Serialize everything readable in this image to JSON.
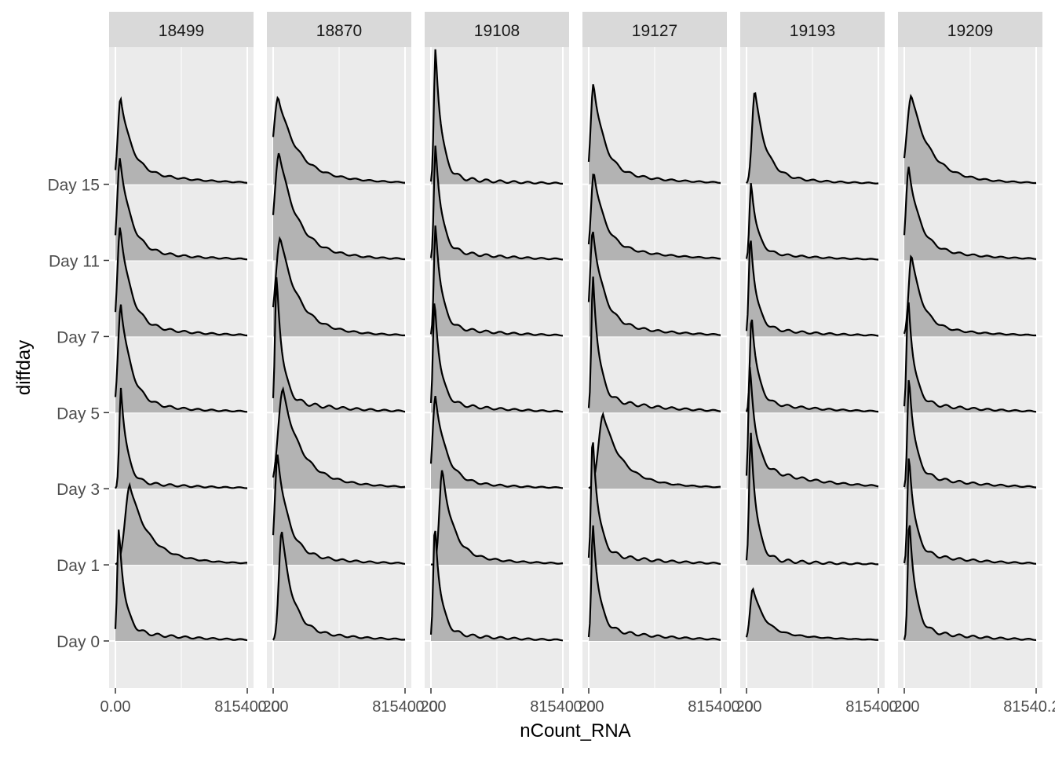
{
  "chart_data": {
    "type": "ridgeline",
    "xlabel": "nCount_RNA",
    "ylabel": "diffday",
    "x_tick_labels": [
      "0.00",
      "81540.20"
    ],
    "x_range": [
      0,
      81540.2
    ],
    "categories": [
      "Day 0",
      "Day 1",
      "Day 3",
      "Day 5",
      "Day 7",
      "Day 11",
      "Day 15"
    ],
    "fill_color": "#b3b3b3",
    "line_color": "#000000",
    "panel_background": "#ebebeb",
    "strip_background": "#d9d9d9",
    "grid": true,
    "facets": [
      {
        "label": "18499",
        "ridges": [
          {
            "day": "Day 0",
            "peak_x": 2200,
            "peak_height": 1.48,
            "shape": "sharp",
            "tail": 0.1
          },
          {
            "day": "Day 1",
            "peak_x": 9000,
            "peak_height": 1.05,
            "shape": "broad",
            "tail": 0.15
          },
          {
            "day": "Day 3",
            "peak_x": 3500,
            "peak_height": 1.33,
            "shape": "sharp",
            "tail": 0.08
          },
          {
            "day": "Day 5",
            "peak_x": 3400,
            "peak_height": 1.42,
            "shape": "medium",
            "tail": 0.1
          },
          {
            "day": "Day 7",
            "peak_x": 3000,
            "peak_height": 1.45,
            "shape": "medium",
            "tail": 0.12
          },
          {
            "day": "Day 11",
            "peak_x": 2900,
            "peak_height": 1.35,
            "shape": "medium",
            "tail": 0.12
          },
          {
            "day": "Day 15",
            "peak_x": 3300,
            "peak_height": 1.15,
            "shape": "medium",
            "tail": 0.18
          }
        ]
      },
      {
        "label": "18870",
        "ridges": [
          {
            "day": "Day 0",
            "peak_x": 5300,
            "peak_height": 1.45,
            "shape": "medium",
            "tail": 0.12
          },
          {
            "day": "Day 1",
            "peak_x": 2800,
            "peak_height": 1.45,
            "shape": "medium",
            "tail": 0.12
          },
          {
            "day": "Day 3",
            "peak_x": 6000,
            "peak_height": 1.3,
            "shape": "broad",
            "tail": 0.15
          },
          {
            "day": "Day 5",
            "peak_x": 2200,
            "peak_height": 1.8,
            "shape": "sharp",
            "tail": 0.1
          },
          {
            "day": "Day 7",
            "peak_x": 4500,
            "peak_height": 1.3,
            "shape": "broad",
            "tail": 0.12
          },
          {
            "day": "Day 11",
            "peak_x": 3800,
            "peak_height": 1.42,
            "shape": "broad",
            "tail": 0.12
          },
          {
            "day": "Day 15",
            "peak_x": 3200,
            "peak_height": 1.15,
            "shape": "broad",
            "tail": 0.18
          }
        ]
      },
      {
        "label": "19108",
        "ridges": [
          {
            "day": "Day 0",
            "peak_x": 2500,
            "peak_height": 1.53,
            "shape": "sharp",
            "tail": 0.08
          },
          {
            "day": "Day 1",
            "peak_x": 7000,
            "peak_height": 1.25,
            "shape": "medium",
            "tail": 0.12
          },
          {
            "day": "Day 3",
            "peak_x": 2800,
            "peak_height": 1.22,
            "shape": "medium",
            "tail": 0.1
          },
          {
            "day": "Day 5",
            "peak_x": 2300,
            "peak_height": 1.48,
            "shape": "sharp",
            "tail": 0.1
          },
          {
            "day": "Day 7",
            "peak_x": 2900,
            "peak_height": 1.48,
            "shape": "sharp",
            "tail": 0.1
          },
          {
            "day": "Day 11",
            "peak_x": 2900,
            "peak_height": 1.53,
            "shape": "sharp",
            "tail": 0.1
          },
          {
            "day": "Day 15",
            "peak_x": 2900,
            "peak_height": 1.8,
            "shape": "sharp",
            "tail": 0.06
          }
        ]
      },
      {
        "label": "19127",
        "ridges": [
          {
            "day": "Day 0",
            "peak_x": 2700,
            "peak_height": 1.53,
            "shape": "sharp",
            "tail": 0.12
          },
          {
            "day": "Day 1",
            "peak_x": 2500,
            "peak_height": 1.7,
            "shape": "sharp",
            "tail": 0.1
          },
          {
            "day": "Day 3",
            "peak_x": 9000,
            "peak_height": 0.98,
            "shape": "broad",
            "tail": 0.15
          },
          {
            "day": "Day 5",
            "peak_x": 2700,
            "peak_height": 1.8,
            "shape": "sharp",
            "tail": 0.12
          },
          {
            "day": "Day 7",
            "peak_x": 2600,
            "peak_height": 1.4,
            "shape": "medium",
            "tail": 0.15
          },
          {
            "day": "Day 11",
            "peak_x": 3200,
            "peak_height": 1.17,
            "shape": "medium",
            "tail": 0.2
          },
          {
            "day": "Day 15",
            "peak_x": 3000,
            "peak_height": 1.33,
            "shape": "medium",
            "tail": 0.15
          }
        ]
      },
      {
        "label": "19193",
        "ridges": [
          {
            "day": "Day 0",
            "peak_x": 4000,
            "peak_height": 0.7,
            "shape": "medium",
            "tail": 0.2
          },
          {
            "day": "Day 1",
            "peak_x": 2700,
            "peak_height": 1.75,
            "shape": "sharp",
            "tail": 0.05
          },
          {
            "day": "Day 3",
            "peak_x": 2200,
            "peak_height": 1.62,
            "shape": "sharp",
            "tail": 0.2
          },
          {
            "day": "Day 5",
            "peak_x": 3200,
            "peak_height": 1.3,
            "shape": "sharp",
            "tail": 0.12
          },
          {
            "day": "Day 7",
            "peak_x": 2500,
            "peak_height": 1.33,
            "shape": "sharp",
            "tail": 0.1
          },
          {
            "day": "Day 11",
            "peak_x": 2900,
            "peak_height": 1.03,
            "shape": "sharp",
            "tail": 0.12
          },
          {
            "day": "Day 15",
            "peak_x": 5200,
            "peak_height": 1.23,
            "shape": "medium",
            "tail": 0.1
          }
        ]
      },
      {
        "label": "19209",
        "ridges": [
          {
            "day": "Day 0",
            "peak_x": 3200,
            "peak_height": 1.62,
            "shape": "sharp",
            "tail": 0.1
          },
          {
            "day": "Day 1",
            "peak_x": 3000,
            "peak_height": 1.45,
            "shape": "sharp",
            "tail": 0.12
          },
          {
            "day": "Day 3",
            "peak_x": 3000,
            "peak_height": 1.48,
            "shape": "sharp",
            "tail": 0.14
          },
          {
            "day": "Day 5",
            "peak_x": 2500,
            "peak_height": 1.53,
            "shape": "sharp",
            "tail": 0.1
          },
          {
            "day": "Day 7",
            "peak_x": 4500,
            "peak_height": 1.08,
            "shape": "medium",
            "tail": 0.14
          },
          {
            "day": "Day 11",
            "peak_x": 2800,
            "peak_height": 1.23,
            "shape": "medium",
            "tail": 0.16
          },
          {
            "day": "Day 15",
            "peak_x": 4500,
            "peak_height": 1.17,
            "shape": "broad",
            "tail": 0.14
          }
        ]
      }
    ]
  }
}
